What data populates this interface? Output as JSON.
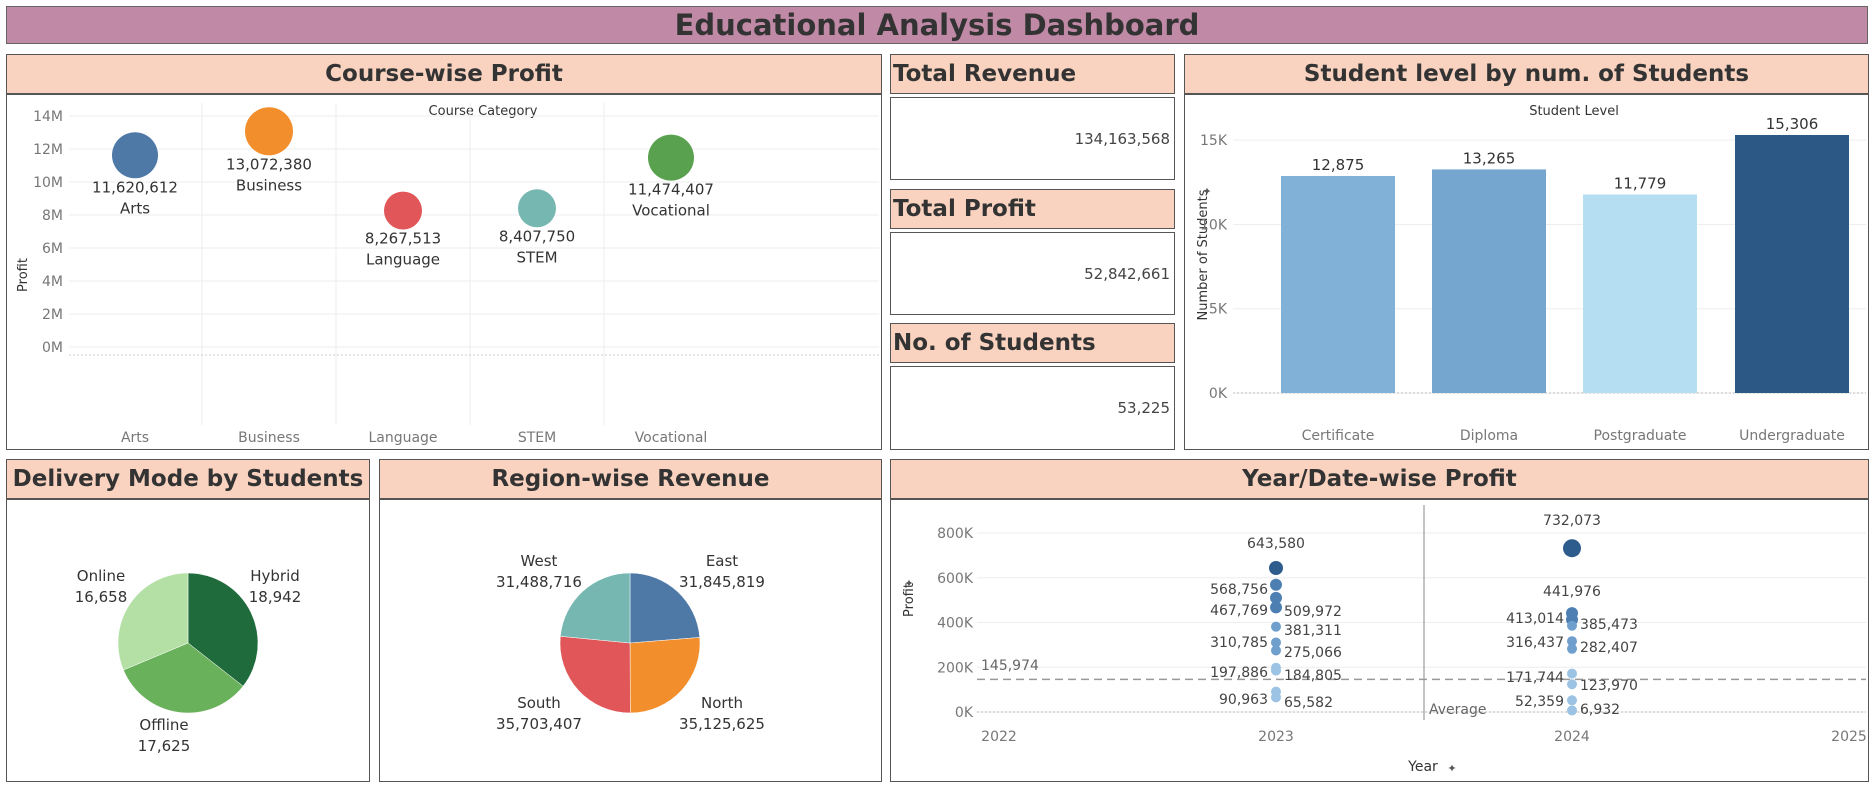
{
  "dashboard_title": "Educational Analysis Dashboard",
  "course_profit": {
    "header": "Course-wise Profit",
    "column_header": "Course Category",
    "y_axis_label": "Profit",
    "y_ticks": [
      "14M",
      "12M",
      "10M",
      "8M",
      "6M",
      "4M",
      "2M",
      "0M"
    ],
    "categories": [
      "Arts",
      "Business",
      "Language",
      "STEM",
      "Vocational"
    ],
    "point_labels": [
      {
        "value": "11,620,612",
        "name": "Arts"
      },
      {
        "value": "13,072,380",
        "name": "Business"
      },
      {
        "value": "8,267,513",
        "name": "Language"
      },
      {
        "value": "8,407,750",
        "name": "STEM"
      },
      {
        "value": "11,474,407",
        "name": "Vocational"
      }
    ]
  },
  "kpis": {
    "total_revenue_label": "Total Revenue",
    "total_revenue_value": "134,163,568",
    "total_profit_label": "Total Profit",
    "total_profit_value": "52,842,661",
    "students_label": "No. of Students",
    "students_value": "53,225"
  },
  "student_level": {
    "header": "Student level by num. of Students",
    "column_header": "Student Level",
    "y_axis_label": "Number of Students",
    "y_ticks": [
      "15K",
      "10K",
      "5K",
      "0K"
    ],
    "bars": [
      {
        "name": "Certificate",
        "label": "12,875"
      },
      {
        "name": "Diploma",
        "label": "13,265"
      },
      {
        "name": "Postgraduate",
        "label": "11,779"
      },
      {
        "name": "Undergraduate",
        "label": "15,306"
      }
    ]
  },
  "delivery_mode": {
    "header": "Delivery Mode by Students",
    "slices": [
      {
        "name": "Hybrid",
        "value": "18,942"
      },
      {
        "name": "Offline",
        "value": "17,625"
      },
      {
        "name": "Online",
        "value": "16,658"
      }
    ]
  },
  "region_revenue": {
    "header": "Region-wise Revenue",
    "slices": [
      {
        "name": "East",
        "value": "31,845,819"
      },
      {
        "name": "North",
        "value": "35,125,625"
      },
      {
        "name": "South",
        "value": "35,703,407"
      },
      {
        "name": "West",
        "value": "31,488,716"
      }
    ]
  },
  "year_profit": {
    "header": "Year/Date-wise Profit",
    "y_axis_label": "Profit",
    "x_axis_label": "Year",
    "y_ticks": [
      "800K",
      "600K",
      "400K",
      "200K",
      "0K"
    ],
    "x_ticks": [
      "2022",
      "2023",
      "2024",
      "2025"
    ],
    "average_line_label": "Average",
    "average_value": "145,974",
    "labels_2023": [
      "643,580",
      "568,756",
      "509,972",
      "467,769",
      "381,311",
      "310,785",
      "275,066",
      "197,886",
      "184,805",
      "90,963",
      "65,582"
    ],
    "labels_2024": [
      "732,073",
      "441,976",
      "413,014",
      "385,473",
      "316,437",
      "282,407",
      "171,744",
      "123,970",
      "52,359",
      "6,932"
    ]
  },
  "chart_data": [
    {
      "type": "scatter",
      "title": "Course-wise Profit",
      "xlabel": "Course Category",
      "ylabel": "Profit",
      "categories": [
        "Arts",
        "Business",
        "Language",
        "STEM",
        "Vocational"
      ],
      "values": [
        11620612,
        13072380,
        8267513,
        8407750,
        11474407
      ],
      "colors": [
        "#4e79a7",
        "#f28e2b",
        "#e15759",
        "#76b7b2",
        "#59a14f"
      ],
      "ylim": [
        0,
        14000000
      ],
      "grid": true
    },
    {
      "type": "bar",
      "title": "Student level by num. of Students",
      "xlabel": "Student Level",
      "ylabel": "Number of Students",
      "categories": [
        "Certificate",
        "Diploma",
        "Postgraduate",
        "Undergraduate"
      ],
      "values": [
        12875,
        13265,
        11779,
        15306
      ],
      "colors": [
        "#82b1d7",
        "#74a6cf",
        "#b6def3",
        "#2c5885"
      ],
      "ylim": [
        0,
        15306
      ],
      "grid": true
    },
    {
      "type": "pie",
      "title": "Delivery Mode by Students",
      "categories": [
        "Hybrid",
        "Offline",
        "Online"
      ],
      "values": [
        18942,
        17625,
        16658
      ],
      "colors": [
        "#1f6b3c",
        "#6ab15b",
        "#b4e0a6"
      ]
    },
    {
      "type": "pie",
      "title": "Region-wise Revenue",
      "categories": [
        "East",
        "North",
        "South",
        "West"
      ],
      "values": [
        31845819,
        35125625,
        35703407,
        31488716
      ],
      "colors": [
        "#4e79a7",
        "#f28e2b",
        "#e15759",
        "#76b7b2"
      ]
    },
    {
      "type": "scatter",
      "title": "Year/Date-wise Profit",
      "xlabel": "Year",
      "ylabel": "Profit",
      "x_ticks": [
        "2022",
        "2023",
        "2024",
        "2025"
      ],
      "series": [
        {
          "x": "2023",
          "values": [
            643580,
            568756,
            509972,
            467769,
            381311,
            310785,
            275066,
            197886,
            184805,
            90963,
            65582
          ]
        },
        {
          "x": "2024",
          "values": [
            732073,
            441976,
            413014,
            385473,
            316437,
            282407,
            171744,
            123970,
            52359,
            6932
          ]
        }
      ],
      "reference_line": {
        "label": "Average",
        "value": 145974
      },
      "ylim": [
        0,
        800000
      ],
      "grid": true
    }
  ]
}
